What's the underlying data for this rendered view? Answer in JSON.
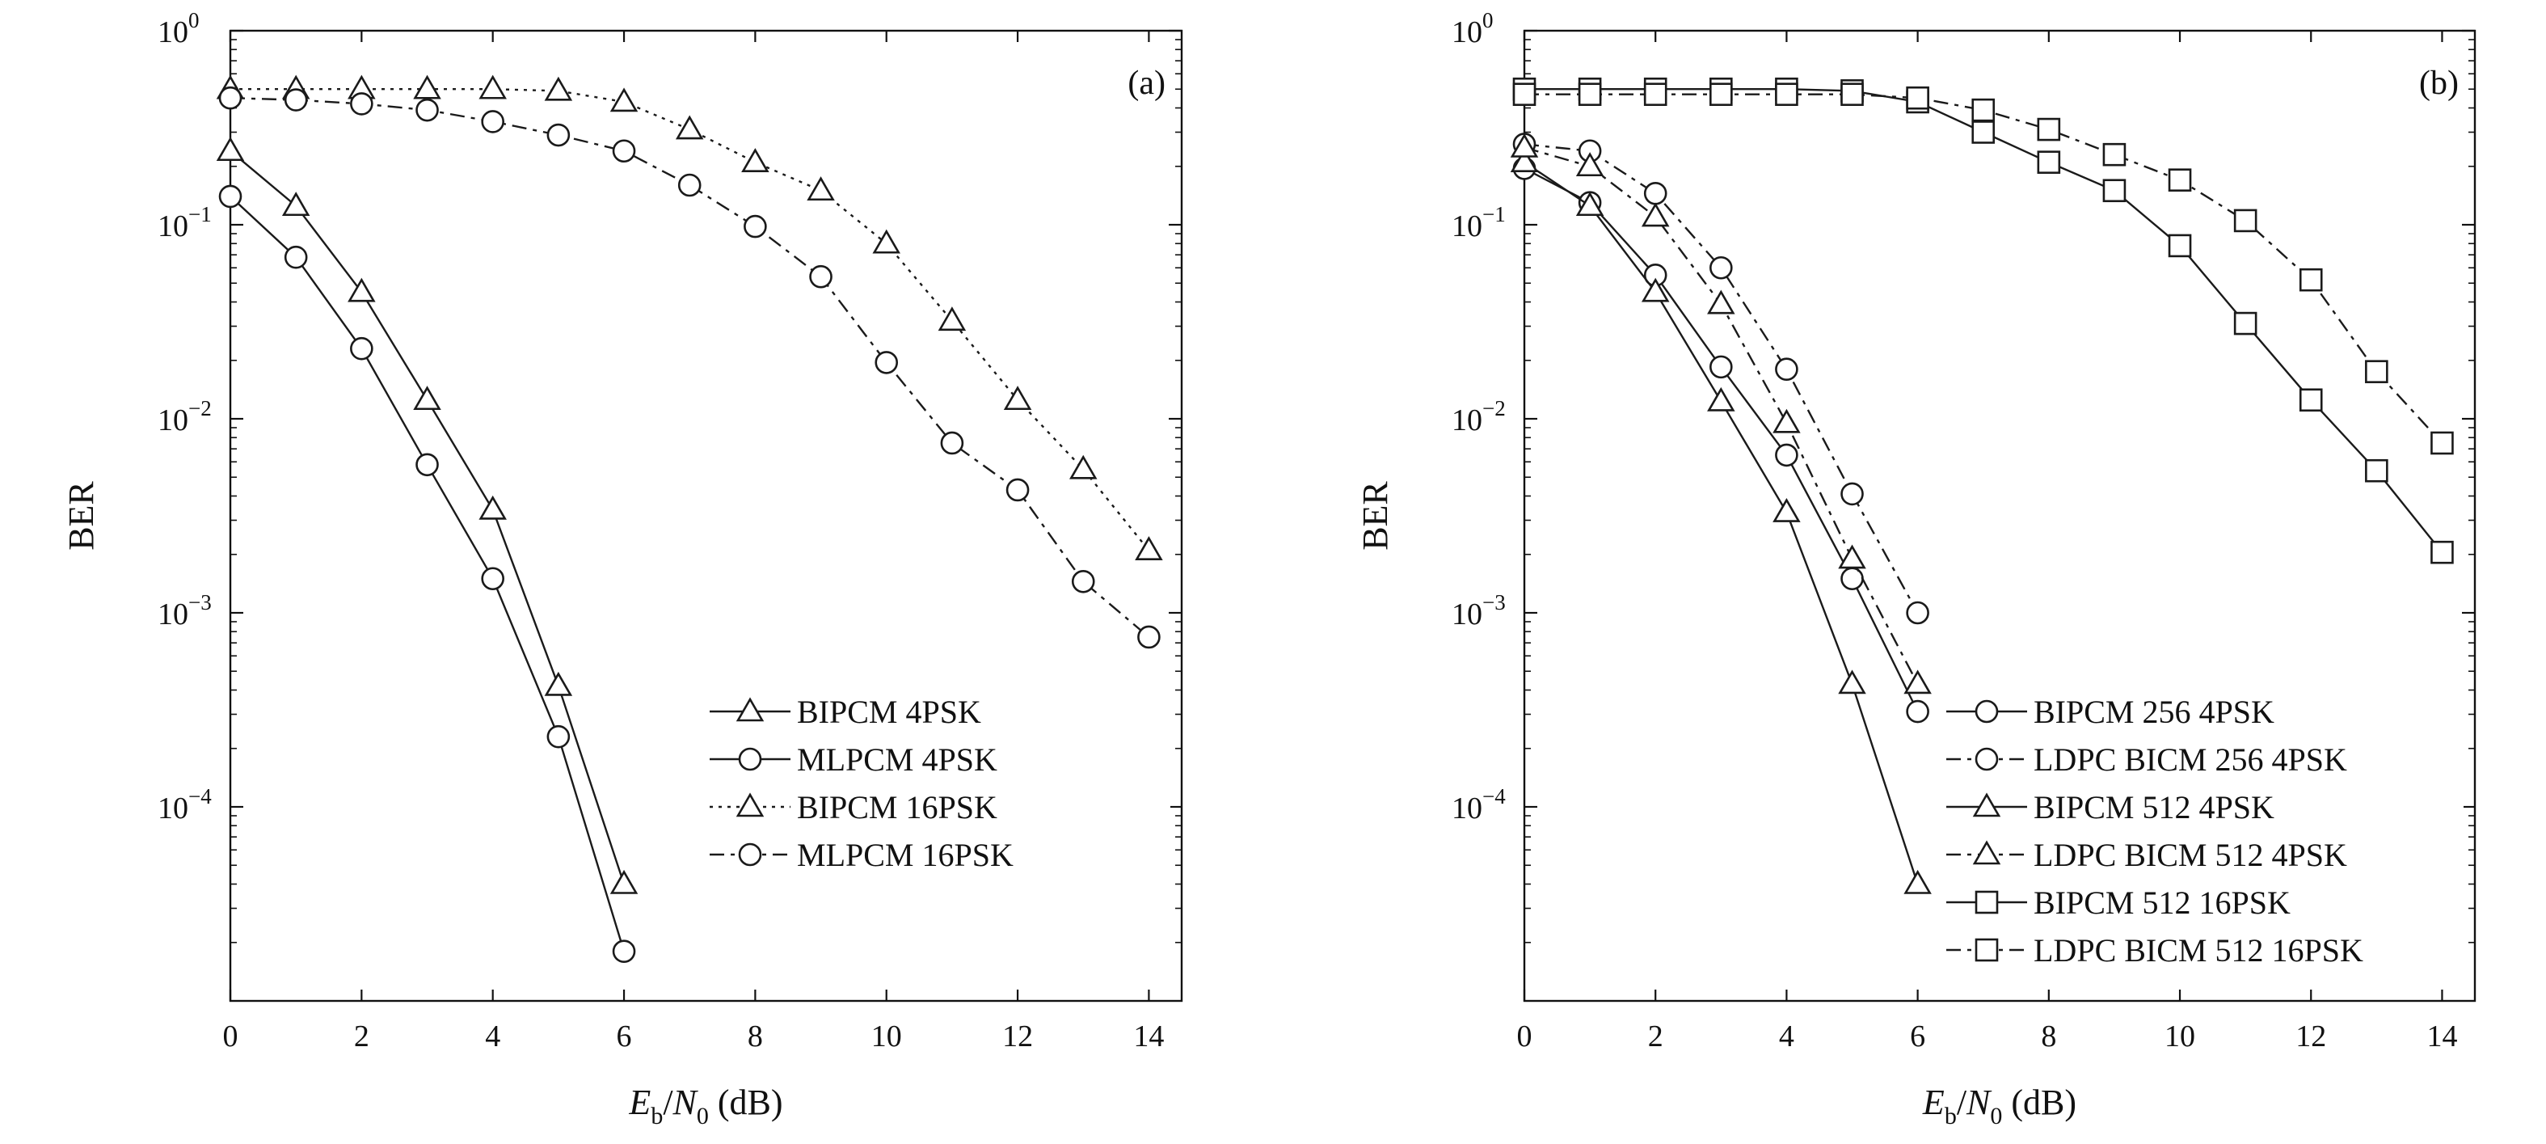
{
  "chart_data": [
    {
      "type": "line",
      "panel_label": "(a)",
      "xlabel": {
        "E": "E",
        "b": "b",
        "slash": "/",
        "N": "N",
        "zero": "0",
        "unit": " (dB)"
      },
      "ylabel": "BER",
      "xlim": [
        0,
        14.5
      ],
      "ylim": [
        1e-05,
        1
      ],
      "yscale": "log",
      "xticks": [
        "0",
        "2",
        "4",
        "6",
        "8",
        "10",
        "12",
        "14"
      ],
      "yticks": [
        {
          "value": 1,
          "mantissa": "10",
          "exp": "0"
        },
        {
          "value": 0.1,
          "mantissa": "10",
          "exp": "−1"
        },
        {
          "value": 0.01,
          "mantissa": "10",
          "exp": "−2"
        },
        {
          "value": 0.001,
          "mantissa": "10",
          "exp": "−3"
        },
        {
          "value": 0.0001,
          "mantissa": "10",
          "exp": "−4"
        }
      ],
      "grid": false,
      "legend_position": "bottom-right",
      "series": [
        {
          "name": "BIPCM 4PSK",
          "marker": "triangle",
          "dash": "solid",
          "x": [
            0,
            1,
            2,
            3,
            4,
            5,
            6
          ],
          "y": [
            0.24,
            0.125,
            0.045,
            0.0125,
            0.0034,
            0.00042,
            4e-05
          ]
        },
        {
          "name": "MLPCM 4PSK",
          "marker": "circle",
          "dash": "solid",
          "x": [
            0,
            1,
            2,
            3,
            4,
            5,
            6
          ],
          "y": [
            0.14,
            0.068,
            0.023,
            0.0058,
            0.0015,
            0.00023,
            1.8e-05
          ]
        },
        {
          "name": "BIPCM 16PSK",
          "marker": "triangle",
          "dash": "dotted",
          "x": [
            0,
            1,
            2,
            3,
            4,
            5,
            6,
            7,
            8,
            9,
            10,
            11,
            12,
            13,
            14
          ],
          "y": [
            0.5,
            0.5,
            0.5,
            0.5,
            0.5,
            0.49,
            0.43,
            0.31,
            0.21,
            0.15,
            0.08,
            0.032,
            0.0125,
            0.0055,
            0.0021
          ]
        },
        {
          "name": "MLPCM 16PSK",
          "marker": "circle",
          "dash": "dashdot",
          "x": [
            0,
            1,
            2,
            3,
            4,
            5,
            6,
            7,
            8,
            9,
            10,
            11,
            12,
            13,
            14
          ],
          "y": [
            0.45,
            0.44,
            0.42,
            0.39,
            0.34,
            0.29,
            0.24,
            0.16,
            0.098,
            0.054,
            0.0195,
            0.0075,
            0.0043,
            0.00145,
            0.00075
          ]
        }
      ]
    },
    {
      "type": "line",
      "panel_label": "(b)",
      "xlabel": {
        "E": "E",
        "b": "b",
        "slash": "/",
        "N": "N",
        "zero": "0",
        "unit": " (dB)"
      },
      "ylabel": "BER",
      "xlim": [
        0,
        14.5
      ],
      "ylim": [
        1e-05,
        1
      ],
      "yscale": "log",
      "xticks": [
        "0",
        "2",
        "4",
        "6",
        "8",
        "10",
        "12",
        "14"
      ],
      "yticks": [
        {
          "value": 1,
          "mantissa": "10",
          "exp": "0"
        },
        {
          "value": 0.1,
          "mantissa": "10",
          "exp": "−1"
        },
        {
          "value": 0.01,
          "mantissa": "10",
          "exp": "−2"
        },
        {
          "value": 0.001,
          "mantissa": "10",
          "exp": "−3"
        },
        {
          "value": 0.0001,
          "mantissa": "10",
          "exp": "−4"
        }
      ],
      "grid": false,
      "legend_position": "bottom-right",
      "series": [
        {
          "name": "BIPCM 256 4PSK",
          "marker": "circle",
          "dash": "solid",
          "x": [
            0,
            1,
            2,
            3,
            4,
            5,
            6
          ],
          "y": [
            0.195,
            0.13,
            0.055,
            0.0185,
            0.0065,
            0.0015,
            0.00031
          ]
        },
        {
          "name": "LDPC BICM 256 4PSK",
          "marker": "circle",
          "dash": "dashdot",
          "x": [
            0,
            1,
            2,
            3,
            4,
            5,
            6
          ],
          "y": [
            0.26,
            0.24,
            0.145,
            0.06,
            0.018,
            0.0041,
            0.001
          ]
        },
        {
          "name": "BIPCM 512 4PSK",
          "marker": "triangle",
          "dash": "solid",
          "x": [
            0,
            1,
            2,
            3,
            4,
            5,
            6
          ],
          "y": [
            0.21,
            0.125,
            0.045,
            0.0123,
            0.0033,
            0.00043,
            4e-05
          ]
        },
        {
          "name": "LDPC BICM 512 4PSK",
          "marker": "triangle",
          "dash": "dashdot",
          "x": [
            0,
            1,
            2,
            3,
            4,
            5,
            6
          ],
          "y": [
            0.25,
            0.2,
            0.11,
            0.039,
            0.0095,
            0.0019,
            0.00043
          ]
        },
        {
          "name": "BIPCM 512 16PSK",
          "marker": "square",
          "dash": "solid",
          "x": [
            0,
            1,
            2,
            3,
            4,
            5,
            6,
            7,
            8,
            9,
            10,
            11,
            12,
            13,
            14
          ],
          "y": [
            0.5,
            0.5,
            0.5,
            0.5,
            0.5,
            0.49,
            0.43,
            0.3,
            0.21,
            0.15,
            0.078,
            0.031,
            0.0125,
            0.0054,
            0.00205
          ]
        },
        {
          "name": "LDPC BICM 512 16PSK",
          "marker": "square",
          "dash": "dashdot",
          "x": [
            0,
            1,
            2,
            3,
            4,
            5,
            6,
            7,
            8,
            9,
            10,
            11,
            12,
            13,
            14
          ],
          "y": [
            0.47,
            0.47,
            0.47,
            0.47,
            0.47,
            0.47,
            0.45,
            0.39,
            0.31,
            0.23,
            0.17,
            0.105,
            0.052,
            0.0175,
            0.0075
          ]
        }
      ]
    }
  ]
}
